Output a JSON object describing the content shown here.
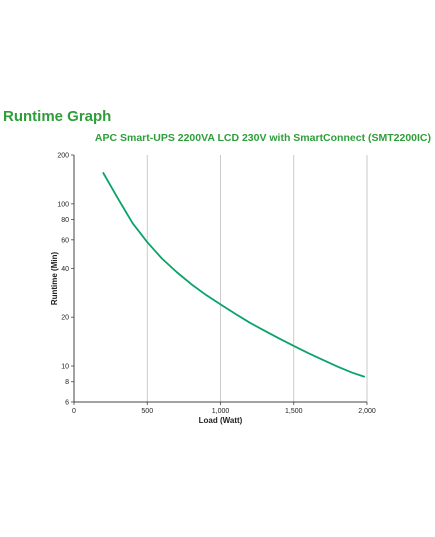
{
  "page": {
    "title": "Runtime Graph",
    "model": "APC Smart-UPS 2200VA LCD 230V with SmartConnect (SMT2200IC)"
  },
  "colors": {
    "title": "#2e9e3a",
    "curve": "#0aa36a",
    "grid": "#bdbdbd",
    "axis": "#444444"
  },
  "chart_data": {
    "type": "line",
    "title": "",
    "xlabel": "Load (Watt)",
    "ylabel": "Runtime (Min)",
    "xlim": [
      0,
      2000
    ],
    "ylim": [
      6,
      200
    ],
    "yscale": "log",
    "grid": true,
    "x_ticks": [
      0,
      500,
      1000,
      1500,
      2000
    ],
    "x_tick_labels": [
      "0",
      "500",
      "1,000",
      "1,500",
      "2,000"
    ],
    "y_ticks": [
      6,
      8,
      10,
      20,
      40,
      60,
      80,
      100,
      200
    ],
    "y_tick_labels": [
      "6",
      "8",
      "10",
      "20",
      "40",
      "60",
      "80",
      "100",
      "200"
    ],
    "series": [
      {
        "name": "",
        "x": [
          200,
          300,
          400,
          500,
          600,
          700,
          800,
          900,
          1000,
          1100,
          1200,
          1300,
          1400,
          1500,
          1600,
          1700,
          1800,
          1900,
          1980
        ],
        "y": [
          155,
          108,
          76,
          58,
          46,
          38,
          32,
          27.5,
          24,
          21,
          18.5,
          16.5,
          14.8,
          13.3,
          12,
          10.9,
          9.9,
          9.1,
          8.6
        ]
      }
    ]
  }
}
